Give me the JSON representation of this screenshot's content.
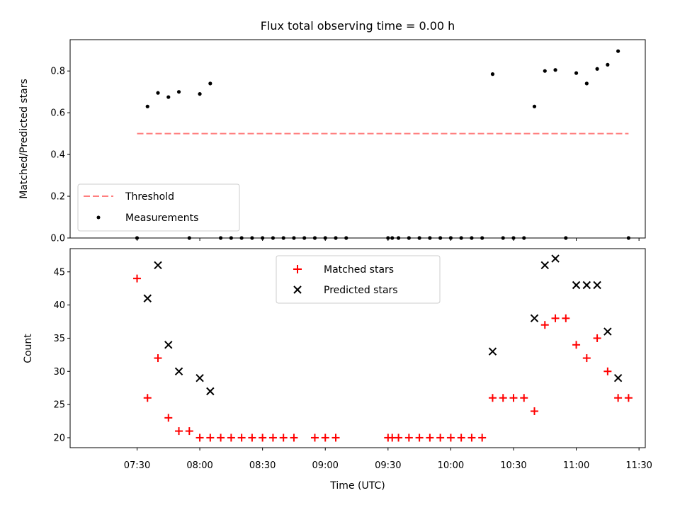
{
  "chart_data": [
    {
      "type": "scatter",
      "title": "Flux total observing time = 0.00 h",
      "xlabel": "",
      "ylabel": "Matched/Predicted stars",
      "ylim": [
        0,
        0.95
      ],
      "yticks": [
        0.0,
        0.2,
        0.4,
        0.6,
        0.8
      ],
      "ytick_labels": [
        "0.0",
        "0.2",
        "0.4",
        "0.6",
        "0.8"
      ],
      "xlim_minutes": [
        418,
        693
      ],
      "x_unit": "minutes since 00:00 UTC",
      "xticks": [
        450,
        480,
        510,
        540,
        570,
        600,
        630,
        660,
        690
      ],
      "grid": false,
      "legend": "lower-left",
      "series": [
        {
          "name": "Threshold",
          "kind": "dashed-line",
          "color": "#ff7f7f",
          "x": [
            450,
            685
          ],
          "y": [
            0.5,
            0.5
          ]
        },
        {
          "name": "Measurements",
          "kind": "dot",
          "color": "#000000",
          "x": [
            450,
            455,
            460,
            465,
            470,
            475,
            480,
            485,
            490,
            495,
            500,
            505,
            510,
            515,
            520,
            525,
            530,
            535,
            540,
            545,
            550,
            570,
            572,
            575,
            580,
            585,
            590,
            595,
            600,
            605,
            610,
            615,
            620,
            625,
            630,
            635,
            640,
            645,
            650,
            655,
            660,
            665,
            670,
            675,
            680,
            685
          ],
          "y": [
            0.0,
            0.63,
            0.695,
            0.675,
            0.7,
            0.0,
            0.69,
            0.74,
            0.0,
            0.0,
            0.0,
            0.0,
            0.0,
            0.0,
            0.0,
            0.0,
            0.0,
            0.0,
            0.0,
            0.0,
            0.0,
            0.0,
            0.0,
            0.0,
            0.0,
            0.0,
            0.0,
            0.0,
            0.0,
            0.0,
            0.0,
            0.0,
            0.785,
            0.0,
            0.0,
            0.0,
            0.63,
            0.8,
            0.805,
            0.0,
            0.79,
            0.74,
            0.81,
            0.83,
            0.895,
            0.0
          ]
        }
      ]
    },
    {
      "type": "scatter",
      "title": "",
      "xlabel": "Time (UTC)",
      "ylabel": "Count",
      "ylim": [
        18.5,
        48.5
      ],
      "yticks": [
        20,
        25,
        30,
        35,
        40,
        45
      ],
      "ytick_labels": [
        "20",
        "25",
        "30",
        "35",
        "40",
        "45"
      ],
      "xlim_minutes": [
        418,
        693
      ],
      "x_unit": "minutes since 00:00 UTC",
      "xticks": [
        450,
        480,
        510,
        540,
        570,
        600,
        630,
        660,
        690
      ],
      "xtick_labels": [
        "07:30",
        "08:00",
        "08:30",
        "09:00",
        "09:30",
        "10:00",
        "10:30",
        "11:00",
        "11:30"
      ],
      "grid": false,
      "legend": "top-center",
      "series": [
        {
          "name": "Matched stars",
          "marker": "+",
          "color": "#ff0000",
          "x": [
            450,
            455,
            460,
            465,
            470,
            475,
            480,
            485,
            490,
            495,
            500,
            505,
            510,
            515,
            520,
            525,
            535,
            540,
            545,
            570,
            572,
            575,
            580,
            585,
            590,
            595,
            600,
            605,
            610,
            615,
            620,
            625,
            630,
            635,
            640,
            645,
            650,
            655,
            660,
            665,
            670,
            675,
            680,
            685
          ],
          "y": [
            44,
            26,
            32,
            23,
            21,
            21,
            20,
            20,
            20,
            20,
            20,
            20,
            20,
            20,
            20,
            20,
            20,
            20,
            20,
            20,
            20,
            20,
            20,
            20,
            20,
            20,
            20,
            20,
            20,
            20,
            26,
            26,
            26,
            26,
            24,
            37,
            38,
            38,
            34,
            32,
            35,
            30,
            26,
            26
          ]
        },
        {
          "name": "Predicted stars",
          "marker": "x",
          "color": "#000000",
          "x": [
            455,
            460,
            465,
            470,
            480,
            485,
            620,
            640,
            645,
            650,
            660,
            665,
            670,
            675,
            680
          ],
          "y": [
            41,
            46,
            34,
            30,
            29,
            27,
            33,
            38,
            46,
            47,
            43,
            43,
            43,
            36,
            29
          ]
        }
      ]
    }
  ]
}
